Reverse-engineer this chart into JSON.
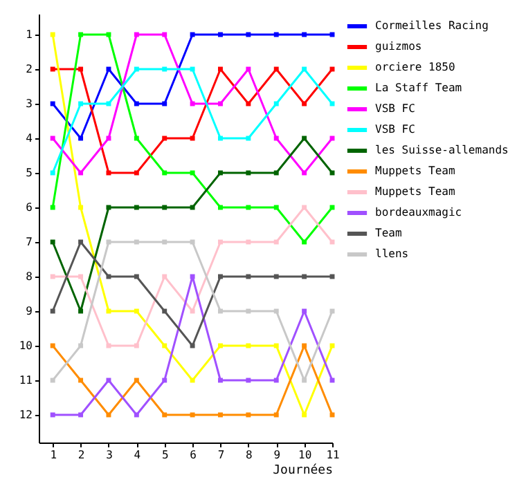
{
  "chart_data": {
    "type": "line",
    "xlabel": "Journées",
    "x": [
      1,
      2,
      3,
      4,
      5,
      6,
      7,
      8,
      9,
      10,
      11
    ],
    "xlim": [
      0.5,
      11
    ],
    "xticks": [
      1,
      2,
      3,
      4,
      5,
      6,
      7,
      8,
      9,
      10,
      11
    ],
    "ylim": [
      12.8,
      0.4
    ],
    "yticks": [
      1,
      2,
      3,
      4,
      5,
      6,
      7,
      8,
      9,
      10,
      11,
      12
    ],
    "grid": false,
    "legend": "right",
    "marker": "square",
    "line_style": "solid",
    "series": [
      {
        "name": "Cormeilles Racing",
        "color": "#0000ff",
        "values": [
          3,
          4,
          2,
          3,
          3,
          1,
          1,
          1,
          1,
          1,
          1
        ]
      },
      {
        "name": "guizmos",
        "color": "#ff0000",
        "values": [
          2,
          2,
          5,
          5,
          4,
          4,
          2,
          3,
          2,
          3,
          2
        ]
      },
      {
        "name": "orciere 1850",
        "color": "#ffff00",
        "values": [
          1,
          6,
          9,
          9,
          10,
          11,
          10,
          10,
          10,
          12,
          10
        ]
      },
      {
        "name": "La Staff Team",
        "color": "#00ff00",
        "values": [
          6,
          1,
          1,
          4,
          5,
          5,
          6,
          6,
          6,
          7,
          6
        ]
      },
      {
        "name": "VSB FC",
        "color": "#ff00ff",
        "values": [
          4,
          5,
          4,
          1,
          1,
          3,
          3,
          2,
          4,
          5,
          4
        ]
      },
      {
        "name": "VSB FC",
        "color": "#00ffff",
        "values": [
          5,
          3,
          3,
          2,
          2,
          2,
          4,
          4,
          3,
          2,
          3
        ]
      },
      {
        "name": "les Suisse-allemands",
        "color": "#006400",
        "values": [
          7,
          9,
          6,
          6,
          6,
          6,
          5,
          5,
          5,
          4,
          5
        ]
      },
      {
        "name": "Muppets Team",
        "color": "#ff8c00",
        "values": [
          10,
          11,
          12,
          11,
          12,
          12,
          12,
          12,
          12,
          10,
          12
        ]
      },
      {
        "name": "Muppets Team",
        "color": "#ffc0cb",
        "values": [
          8,
          8,
          10,
          10,
          8,
          9,
          7,
          7,
          7,
          6,
          7
        ]
      },
      {
        "name": "bordeauxmagic",
        "color": "#a050ff",
        "values": [
          12,
          12,
          11,
          12,
          11,
          8,
          11,
          11,
          11,
          9,
          11
        ]
      },
      {
        "name": "Team",
        "color": "#555555",
        "values": [
          9,
          7,
          8,
          8,
          9,
          10,
          8,
          8,
          8,
          8,
          8
        ]
      },
      {
        "name": "llens",
        "color": "#c8c8c8",
        "values": [
          11,
          10,
          7,
          7,
          7,
          7,
          9,
          9,
          9,
          11,
          9
        ]
      }
    ]
  }
}
